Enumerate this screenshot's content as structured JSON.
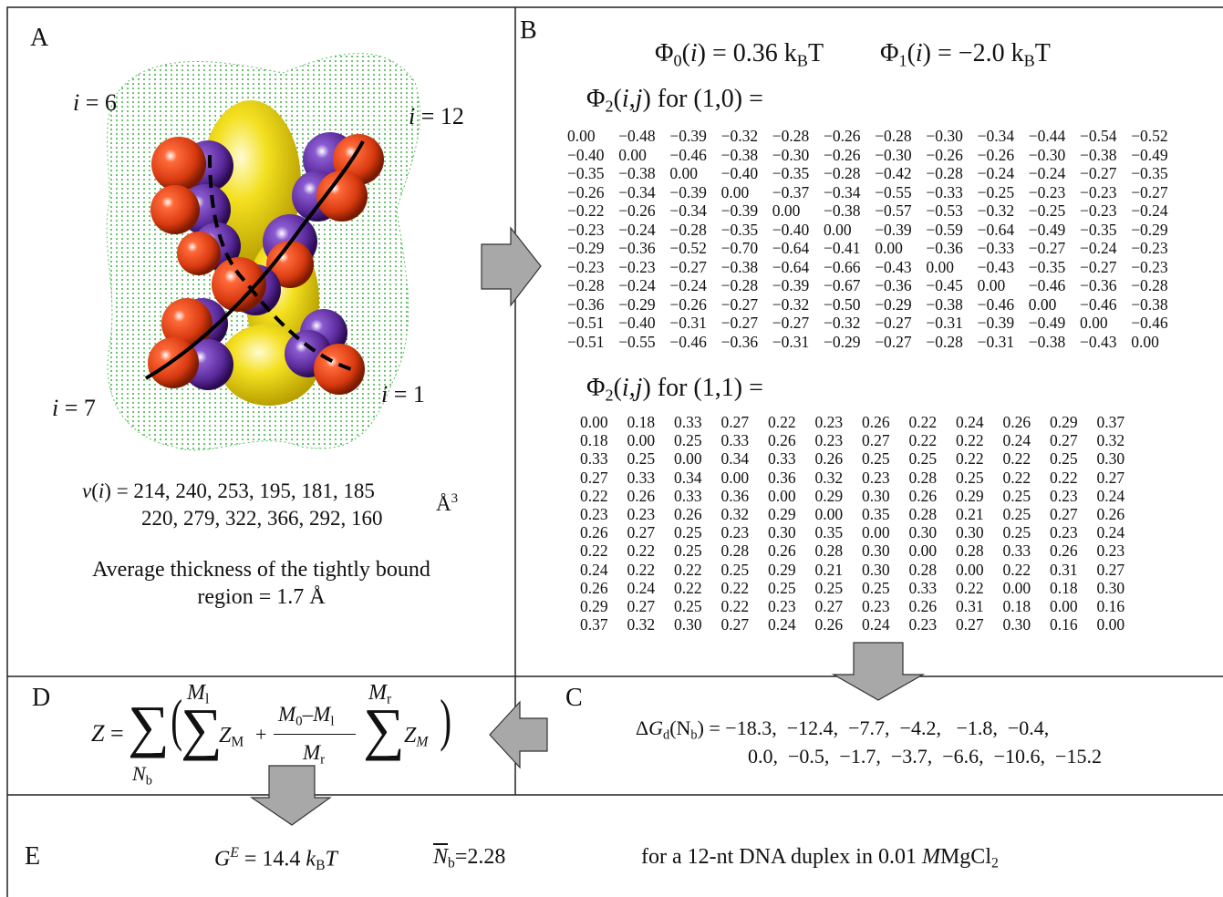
{
  "panel_a": {
    "label": "A",
    "site_labels": [
      [
        {
          "text": "i",
          "style": "italic"
        },
        {
          "text": " = 6",
          "style": "normal"
        }
      ],
      [
        {
          "text": "i",
          "style": "italic"
        },
        {
          "text": " = 12",
          "style": "normal"
        }
      ],
      [
        {
          "text": "i",
          "style": "italic"
        },
        {
          "text": " = 7",
          "style": "normal"
        }
      ],
      [
        {
          "text": "i",
          "style": "italic"
        },
        {
          "text": " = 1",
          "style": "normal"
        }
      ]
    ],
    "volume_line_1": [
      {
        "text": "v",
        "style": "italic"
      },
      {
        "text": "(",
        "style": "normal"
      },
      {
        "text": "i",
        "style": "italic"
      },
      {
        "text": ") = 214, 240, 253, 195, 181, 185",
        "style": "normal"
      }
    ],
    "volume_line_2": [
      {
        "text": "220, 279, 322, 366, 292, 160",
        "style": "normal"
      }
    ],
    "volume_unit": [
      {
        "text": "Å",
        "style": "normal"
      },
      {
        "text": "3",
        "style": "sup"
      }
    ],
    "thickness_line_1": "Average thickness of the tightly bound",
    "thickness_line_2": "region = 1.7 Å"
  },
  "panel_b": {
    "label": "B",
    "phi_0": [
      {
        "text": "Φ",
        "style": "normal"
      },
      {
        "text": "0",
        "style": "sub"
      },
      {
        "text": "(",
        "style": "normal"
      },
      {
        "text": "i",
        "style": "italic"
      },
      {
        "text": ") = 0.36 k",
        "style": "normal"
      },
      {
        "text": "B",
        "style": "sub"
      },
      {
        "text": "T",
        "style": "normal"
      }
    ],
    "phi_1": [
      {
        "text": "Φ",
        "style": "normal"
      },
      {
        "text": "1",
        "style": "sub"
      },
      {
        "text": "(",
        "style": "normal"
      },
      {
        "text": "i",
        "style": "italic"
      },
      {
        "text": ") = −2.0 k",
        "style": "normal"
      },
      {
        "text": "B",
        "style": "sub"
      },
      {
        "text": "T",
        "style": "normal"
      }
    ],
    "matrix_1_title": [
      {
        "text": "Φ",
        "style": "normal"
      },
      {
        "text": "2",
        "style": "sub"
      },
      {
        "text": "(",
        "style": "normal"
      },
      {
        "text": "i,j",
        "style": "italic"
      },
      {
        "text": ") for (1,0) =",
        "style": "normal"
      }
    ],
    "matrix_1": [
      [
        "0.00",
        "−0.48",
        "−0.39",
        "−0.32",
        "−0.28",
        "−0.26",
        "−0.28",
        "−0.30",
        "−0.34",
        "−0.44",
        "−0.54",
        "−0.52"
      ],
      [
        "−0.40",
        "0.00",
        "−0.46",
        "−0.38",
        "−0.30",
        "−0.26",
        "−0.30",
        "−0.26",
        "−0.26",
        "−0.30",
        "−0.38",
        "−0.49"
      ],
      [
        "−0.35",
        "−0.38",
        "0.00",
        "−0.40",
        "−0.35",
        "−0.28",
        "−0.42",
        "−0.28",
        "−0.24",
        "−0.24",
        "−0.27",
        "−0.35"
      ],
      [
        "−0.26",
        "−0.34",
        "−0.39",
        "0.00",
        "−0.37",
        "−0.34",
        "−0.55",
        "−0.33",
        "−0.25",
        "−0.23",
        "−0.23",
        "−0.27"
      ],
      [
        "−0.22",
        "−0.26",
        "−0.34",
        "−0.39",
        "0.00",
        "−0.38",
        "−0.57",
        "−0.53",
        "−0.32",
        "−0.25",
        "−0.23",
        "−0.24"
      ],
      [
        "−0.23",
        "−0.24",
        "−0.28",
        "−0.35",
        "−0.40",
        "0.00",
        "−0.39",
        "−0.59",
        "−0.64",
        "−0.49",
        "−0.35",
        "−0.29"
      ],
      [
        "−0.29",
        "−0.36",
        "−0.52",
        "−0.70",
        "−0.64",
        "−0.41",
        "0.00",
        "−0.36",
        "−0.33",
        "−0.27",
        "−0.24",
        "−0.23"
      ],
      [
        "−0.23",
        "−0.23",
        "−0.27",
        "−0.38",
        "−0.64",
        "−0.66",
        "−0.43",
        "0.00",
        "−0.43",
        "−0.35",
        "−0.27",
        "−0.23"
      ],
      [
        "−0.28",
        "−0.24",
        "−0.24",
        "−0.28",
        "−0.39",
        "−0.67",
        "−0.36",
        "−0.45",
        "0.00",
        "−0.46",
        "−0.36",
        "−0.28"
      ],
      [
        "−0.36",
        "−0.29",
        "−0.26",
        "−0.27",
        "−0.32",
        "−0.50",
        "−0.29",
        "−0.38",
        "−0.46",
        "0.00",
        "−0.46",
        "−0.38"
      ],
      [
        "−0.51",
        "−0.40",
        "−0.31",
        "−0.27",
        "−0.27",
        "−0.32",
        "−0.27",
        "−0.31",
        "−0.39",
        "−0.49",
        "0.00",
        "−0.46"
      ],
      [
        "−0.51",
        "−0.55",
        "−0.46",
        "−0.36",
        "−0.31",
        "−0.29",
        "−0.27",
        "−0.28",
        "−0.31",
        "−0.38",
        "−0.43",
        "0.00"
      ]
    ],
    "matrix_2_title": [
      {
        "text": "Φ",
        "style": "normal"
      },
      {
        "text": "2",
        "style": "sub"
      },
      {
        "text": "(",
        "style": "normal"
      },
      {
        "text": "i,j",
        "style": "italic"
      },
      {
        "text": ") for (1,1) =",
        "style": "normal"
      }
    ],
    "matrix_2": [
      [
        "0.00",
        "0.18",
        "0.33",
        "0.27",
        "0.22",
        "0.23",
        "0.26",
        "0.22",
        "0.24",
        "0.26",
        "0.29",
        "0.37"
      ],
      [
        "0.18",
        "0.00",
        "0.25",
        "0.33",
        "0.26",
        "0.23",
        "0.27",
        "0.22",
        "0.22",
        "0.24",
        "0.27",
        "0.32"
      ],
      [
        "0.33",
        "0.25",
        "0.00",
        "0.34",
        "0.33",
        "0.26",
        "0.25",
        "0.25",
        "0.22",
        "0.22",
        "0.25",
        "0.30"
      ],
      [
        "0.27",
        "0.33",
        "0.34",
        "0.00",
        "0.36",
        "0.32",
        "0.23",
        "0.28",
        "0.25",
        "0.22",
        "0.22",
        "0.27"
      ],
      [
        "0.22",
        "0.26",
        "0.33",
        "0.36",
        "0.00",
        "0.29",
        "0.30",
        "0.26",
        "0.29",
        "0.25",
        "0.23",
        "0.24"
      ],
      [
        "0.23",
        "0.23",
        "0.26",
        "0.32",
        "0.29",
        "0.00",
        "0.35",
        "0.28",
        "0.21",
        "0.25",
        "0.27",
        "0.26"
      ],
      [
        "0.26",
        "0.27",
        "0.25",
        "0.23",
        "0.30",
        "0.35",
        "0.00",
        "0.30",
        "0.30",
        "0.25",
        "0.23",
        "0.24"
      ],
      [
        "0.22",
        "0.22",
        "0.25",
        "0.28",
        "0.26",
        "0.28",
        "0.30",
        "0.00",
        "0.28",
        "0.33",
        "0.26",
        "0.23"
      ],
      [
        "0.24",
        "0.22",
        "0.22",
        "0.25",
        "0.29",
        "0.21",
        "0.30",
        "0.28",
        "0.00",
        "0.22",
        "0.31",
        "0.27"
      ],
      [
        "0.26",
        "0.24",
        "0.22",
        "0.22",
        "0.25",
        "0.25",
        "0.25",
        "0.33",
        "0.22",
        "0.00",
        "0.18",
        "0.30"
      ],
      [
        "0.29",
        "0.27",
        "0.25",
        "0.22",
        "0.23",
        "0.27",
        "0.23",
        "0.26",
        "0.31",
        "0.18",
        "0.00",
        "0.16"
      ],
      [
        "0.37",
        "0.32",
        "0.30",
        "0.27",
        "0.24",
        "0.26",
        "0.24",
        "0.23",
        "0.27",
        "0.30",
        "0.16",
        "0.00"
      ]
    ]
  },
  "panel_c": {
    "label": "C",
    "line_1": [
      {
        "text": "Δ",
        "style": "normal"
      },
      {
        "text": "G",
        "style": "italic"
      },
      {
        "text": "d",
        "style": "sub"
      },
      {
        "text": "(N",
        "style": "normal"
      },
      {
        "text": "b",
        "style": "sub"
      },
      {
        "text": ") = −18.3,  −12.4,  −7.7,  −4.2,   −1.8,  −0.4,",
        "style": "normal"
      }
    ],
    "line_2": [
      {
        "text": "0.0,  −0.5,  −1.7,  −3.7,  −6.6,  −10.6,  −15.2",
        "style": "normal"
      }
    ]
  },
  "panel_d": {
    "label": "D",
    "lhs": [
      {
        "text": "Z",
        "style": "italic"
      },
      {
        "text": " =",
        "style": "normal"
      }
    ],
    "sum_symbol": "∑",
    "outer_index": [
      {
        "text": "N",
        "style": "italic"
      },
      {
        "text": "b",
        "style": "sub"
      }
    ],
    "open_paren": "(",
    "close_paren": ")",
    "upper_limit_1": [
      {
        "text": "M",
        "style": "italic"
      },
      {
        "text": "l",
        "style": "sub"
      }
    ],
    "term": [
      {
        "text": "Z",
        "style": "italic"
      },
      {
        "text": "M",
        "style": "sub"
      }
    ],
    "plus": "+",
    "fraction_numerator": [
      {
        "text": "M",
        "style": "italic"
      },
      {
        "text": "0",
        "style": "sub"
      },
      {
        "text": "–",
        "style": "normal"
      },
      {
        "text": "M",
        "style": "italic"
      },
      {
        "text": "l",
        "style": "sub"
      }
    ],
    "fraction_denominator": [
      {
        "text": "M",
        "style": "italic"
      },
      {
        "text": "r",
        "style": "sub"
      }
    ],
    "upper_limit_2": [
      {
        "text": "M",
        "style": "italic"
      },
      {
        "text": "r",
        "style": "sub"
      }
    ],
    "term_2": [
      {
        "text": "Z",
        "style": "italic"
      },
      {
        "text": "M",
        "style": "subitalic"
      }
    ]
  },
  "panel_e": {
    "label": "E",
    "excess_energy": [
      {
        "text": "G",
        "style": "italic"
      },
      {
        "text": "E",
        "style": "supitalic"
      },
      {
        "text": " = 14.4 ",
        "style": "normal"
      },
      {
        "text": "k",
        "style": "italic"
      },
      {
        "text": "B",
        "style": "sub"
      },
      {
        "text": "T",
        "style": "italic"
      }
    ],
    "mean_bound": [
      {
        "text": "N",
        "style": "overline"
      },
      {
        "text": "b",
        "style": "sub"
      },
      {
        "text": "=2.28",
        "style": "normal"
      }
    ],
    "condition": [
      {
        "text": "for a 12-nt DNA duplex in 0.01 ",
        "style": "normal"
      },
      {
        "text": "M",
        "style": "italic"
      },
      {
        "text": "MgCl",
        "style": "normal"
      },
      {
        "text": "2",
        "style": "sub"
      }
    ]
  }
}
